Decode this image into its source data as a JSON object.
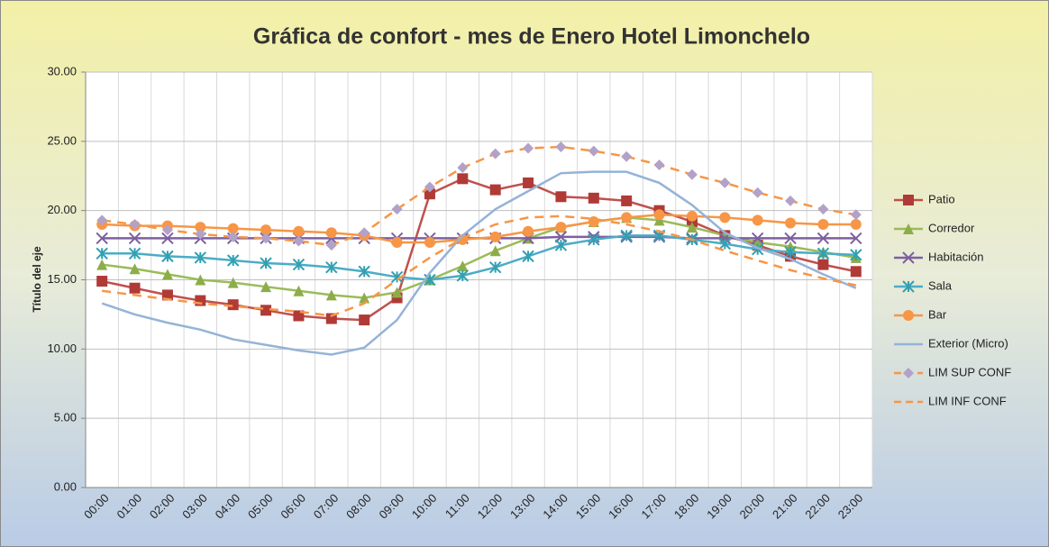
{
  "chart_data": {
    "type": "line",
    "title": "Gráfica de confort - mes de Enero Hotel Limonchelo",
    "y_label": "Título del eje",
    "categories": [
      "00:00",
      "01:00",
      "02:00",
      "03:00",
      "04:00",
      "05:00",
      "06:00",
      "07:00",
      "08:00",
      "09:00",
      "10:00",
      "11:00",
      "12:00",
      "13:00",
      "14:00",
      "15:00",
      "16:00",
      "17:00",
      "18:00",
      "19:00",
      "20:00",
      "21:00",
      "22:00",
      "23:00"
    ],
    "ylim": [
      0,
      30
    ],
    "yticks": [
      {
        "value": 0,
        "label": "0.00"
      },
      {
        "value": 5,
        "label": "5.00"
      },
      {
        "value": 10,
        "label": "10.00"
      },
      {
        "value": 15,
        "label": "15.00"
      },
      {
        "value": 20,
        "label": "20.00"
      },
      {
        "value": 25,
        "label": "25.00"
      },
      {
        "value": 30,
        "label": "30.00"
      }
    ],
    "grid": true,
    "legend": "right",
    "series": [
      {
        "name": "Patio",
        "color": "#c0504d",
        "marker": "square",
        "marker_color": "#b03a36",
        "dash": false,
        "values": [
          14.9,
          14.4,
          13.9,
          13.5,
          13.2,
          12.8,
          12.4,
          12.2,
          12.1,
          13.7,
          21.2,
          22.3,
          21.5,
          22.0,
          21.0,
          20.9,
          20.7,
          20.0,
          19.2,
          18.2,
          17.5,
          16.7,
          16.1,
          15.6
        ]
      },
      {
        "name": "Corredor",
        "color": "#9bbb59",
        "marker": "triangle",
        "marker_color": "#8cad4a",
        "dash": false,
        "values": [
          16.1,
          15.8,
          15.4,
          15.0,
          14.8,
          14.5,
          14.2,
          13.9,
          13.7,
          14.1,
          15.0,
          16.0,
          17.1,
          18.0,
          18.8,
          19.2,
          19.5,
          19.3,
          18.8,
          18.2,
          17.7,
          17.4,
          17.0,
          16.6
        ]
      },
      {
        "name": "Habitación",
        "color": "#7d60a0",
        "marker": "x",
        "marker_color": "#7d60a0",
        "dash": false,
        "values": [
          18.0,
          18.0,
          18.0,
          18.0,
          18.0,
          18.0,
          18.0,
          18.0,
          18.0,
          18.0,
          18.0,
          18.0,
          18.0,
          18.0,
          18.1,
          18.1,
          18.1,
          18.1,
          18.0,
          18.0,
          18.0,
          18.0,
          18.0,
          18.0
        ]
      },
      {
        "name": "Sala",
        "color": "#4bacc6",
        "marker": "star",
        "marker_color": "#31a0b0",
        "dash": false,
        "values": [
          16.9,
          16.9,
          16.7,
          16.6,
          16.4,
          16.2,
          16.1,
          15.9,
          15.6,
          15.2,
          15.0,
          15.3,
          15.9,
          16.7,
          17.5,
          17.9,
          18.2,
          18.2,
          17.9,
          17.6,
          17.2,
          17.0,
          16.9,
          16.8
        ]
      },
      {
        "name": "Bar",
        "color": "#f79646",
        "marker": "circle",
        "marker_color": "#f79646",
        "dash": false,
        "values": [
          19.0,
          18.9,
          18.9,
          18.8,
          18.7,
          18.6,
          18.5,
          18.4,
          18.2,
          17.7,
          17.7,
          17.9,
          18.1,
          18.5,
          18.8,
          19.2,
          19.5,
          19.7,
          19.6,
          19.5,
          19.3,
          19.1,
          19.0,
          19.0
        ]
      },
      {
        "name": "Exterior (Micro)",
        "color": "#95b3d7",
        "marker": "none",
        "marker_color": "#95b3d7",
        "dash": false,
        "values": [
          13.3,
          12.5,
          11.9,
          11.4,
          10.7,
          10.3,
          9.9,
          9.6,
          10.1,
          12.1,
          15.5,
          18.2,
          20.1,
          21.4,
          22.7,
          22.8,
          22.8,
          22.0,
          20.4,
          18.4,
          17.3,
          16.5,
          15.4,
          14.4
        ]
      },
      {
        "name": "LIM SUP CONF",
        "color": "#f79646",
        "marker": "diamond",
        "marker_color": "#b3a2c7",
        "dash": true,
        "values": [
          19.3,
          19.0,
          18.6,
          18.3,
          18.1,
          18.0,
          17.8,
          17.5,
          18.4,
          20.1,
          21.7,
          23.1,
          24.1,
          24.5,
          24.6,
          24.3,
          23.9,
          23.3,
          22.6,
          22.0,
          21.3,
          20.7,
          20.1,
          19.7
        ]
      },
      {
        "name": "LIM INF CONF",
        "color": "#f79646",
        "marker": "none",
        "marker_color": "#f79646",
        "dash": true,
        "values": [
          14.2,
          13.9,
          13.6,
          13.3,
          13.1,
          12.9,
          12.7,
          12.4,
          13.3,
          15.0,
          16.6,
          18.0,
          19.0,
          19.5,
          19.6,
          19.4,
          19.0,
          18.5,
          17.9,
          17.1,
          16.4,
          15.7,
          15.1,
          14.6
        ]
      }
    ]
  }
}
